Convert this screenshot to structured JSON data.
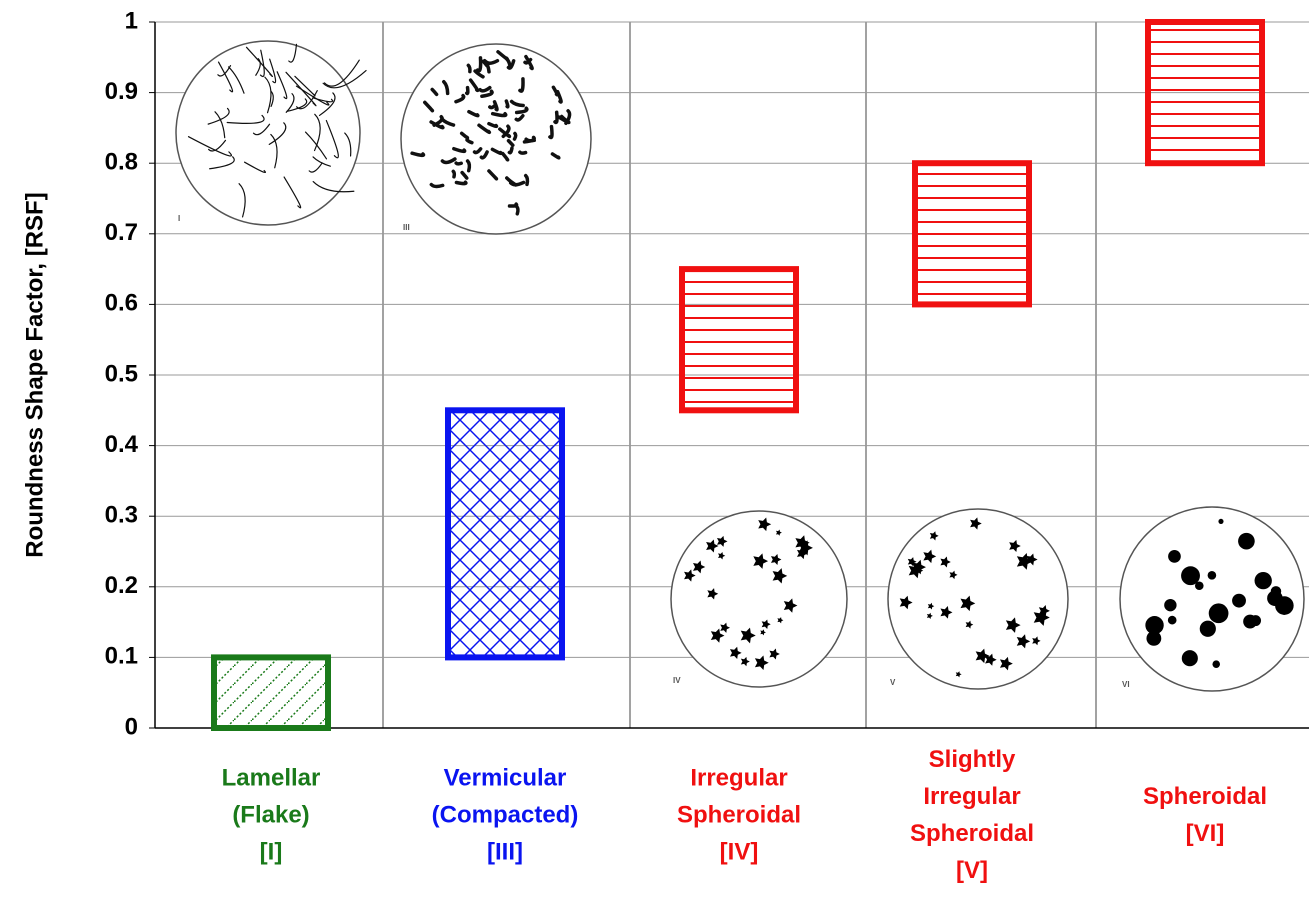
{
  "chart_data": {
    "type": "range_bar",
    "y_label": "Roundness Shape Factor, [RSF]",
    "categories": [
      [
        "Lamellar",
        "(Flake)",
        "[I]"
      ],
      [
        "Vermicular",
        "(Compacted)",
        "[III]"
      ],
      [
        "Irregular",
        "Spheroidal",
        "[IV]"
      ],
      [
        "Slightly",
        "Irregular",
        "Spheroidal",
        "[V]"
      ],
      [
        "Spheroidal",
        "[VI]"
      ]
    ],
    "low": [
      0,
      0.1,
      0.45,
      0.6,
      0.8
    ],
    "high": [
      0.1,
      0.45,
      0.65,
      0.8,
      1
    ],
    "colors": [
      "#1a7a1a",
      "#0a14f0",
      "#f01010",
      "#f01010",
      "#f01010"
    ],
    "patterns": [
      "diagonal",
      "crosshatch",
      "horizontal",
      "horizontal",
      "horizontal"
    ],
    "image_labels": [
      "I",
      "III",
      "IV",
      "V",
      "VI"
    ],
    "ylim": [
      0,
      1
    ],
    "yticks": [
      0,
      0.1,
      0.2,
      0.3,
      0.4,
      0.5,
      0.6,
      0.7,
      0.8,
      0.9,
      1
    ],
    "grid": true
  }
}
